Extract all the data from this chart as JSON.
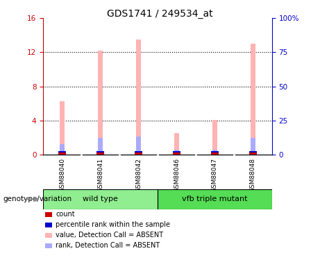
{
  "title": "GDS1741 / 249534_at",
  "samples": [
    "GSM88040",
    "GSM88041",
    "GSM88042",
    "GSM88046",
    "GSM88047",
    "GSM88048"
  ],
  "pink_values": [
    6.3,
    12.2,
    13.5,
    2.5,
    4.1,
    13.0
  ],
  "blue_values": [
    1.2,
    2.0,
    2.1,
    0.6,
    0.6,
    2.0
  ],
  "red_marker_vals": [
    0.15,
    0.15,
    0.15,
    0.15,
    0.15,
    0.15
  ],
  "dark_blue_marker_vals": [
    0.3,
    0.3,
    0.3,
    0.3,
    0.3,
    0.3
  ],
  "ylim_left": [
    0,
    16
  ],
  "ylim_right": [
    0,
    100
  ],
  "yticks_left": [
    0,
    4,
    8,
    12,
    16
  ],
  "ytick_labels_left": [
    "0",
    "4",
    "8",
    "12",
    "16"
  ],
  "yticks_right": [
    0,
    25,
    50,
    75,
    100
  ],
  "ytick_labels_right": [
    "0",
    "25",
    "50",
    "75",
    "100%"
  ],
  "ylabel_left_color": "#CC0000",
  "ylabel_right_color": "#0000CC",
  "bar_width": 0.12,
  "pink_color": "#FFB3B3",
  "blue_color": "#AAAAFF",
  "red_color": "#CC0000",
  "dark_blue_color": "#0000CC",
  "legend_labels": [
    "count",
    "percentile rank within the sample",
    "value, Detection Call = ABSENT",
    "rank, Detection Call = ABSENT"
  ],
  "legend_colors": [
    "#CC0000",
    "#0000CC",
    "#FFB3B3",
    "#AAAAFF"
  ],
  "title_fontsize": 10,
  "tick_fontsize": 7.5,
  "sample_fontsize": 6.5,
  "legend_fontsize": 7,
  "bg_color": "#FFFFFF",
  "sample_bg_color": "#CCCCCC",
  "group_info": [
    {
      "label": "wild type",
      "start": 0,
      "end": 2,
      "color": "#90EE90"
    },
    {
      "label": "vfb triple mutant",
      "start": 3,
      "end": 5,
      "color": "#55DD55"
    }
  ],
  "genotype_label": "genotype/variation",
  "genotype_fontsize": 7.5
}
